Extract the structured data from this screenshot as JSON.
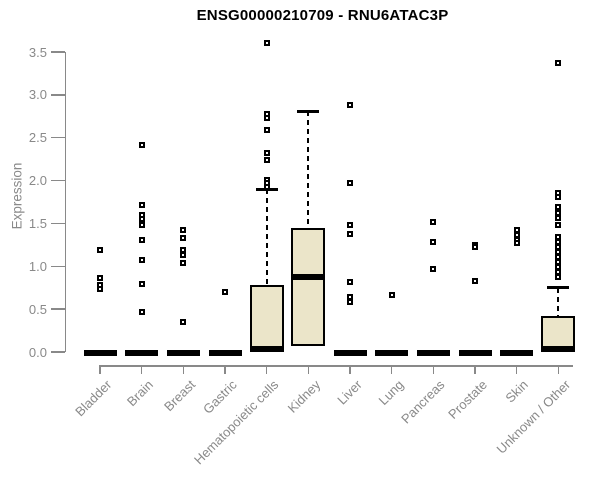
{
  "chart_data": {
    "type": "boxplot",
    "title": "ENSG00000210709 - RNU6ATAC3P",
    "ylabel": "Expression",
    "ylim": [
      0,
      3.5
    ],
    "ytick_values": [
      0,
      0.5,
      1,
      1.5,
      2,
      2.5,
      3,
      3.5
    ],
    "ytick_labels": [
      "0.0",
      "0.5",
      "1.0",
      "1.5",
      "2.0",
      "2.5",
      "3.0",
      "3.5"
    ],
    "grid": "off",
    "legend": "none",
    "box_fill_color": "#ebe5c9",
    "box_line_color": "#000000",
    "axis_color": "#898989",
    "title_color": "#000000",
    "categories": [
      "Bladder",
      "Brain",
      "Breast",
      "Gastric",
      "Hematopoietic cells",
      "Kidney",
      "Liver",
      "Lung",
      "Pancreas",
      "Prostate",
      "Skin",
      "Unknown / Other"
    ],
    "boxes": [
      {
        "label": "Bladder",
        "q1": 0,
        "median": 0,
        "q3": 0,
        "whisker_low": 0,
        "whisker_high": 0,
        "outliers": [
          1.19,
          0.86,
          0.78,
          0.74
        ]
      },
      {
        "label": "Brain",
        "q1": 0,
        "median": 0,
        "q3": 0,
        "whisker_low": 0,
        "whisker_high": 0,
        "outliers": [
          2.41,
          1.72,
          1.6,
          1.55,
          1.48,
          1.31,
          1.07,
          0.79,
          0.47
        ]
      },
      {
        "label": "Breast",
        "q1": 0,
        "median": 0,
        "q3": 0,
        "whisker_low": 0,
        "whisker_high": 0,
        "outliers": [
          1.42,
          1.33,
          1.19,
          1.13,
          1.04,
          0.35
        ]
      },
      {
        "label": "Gastric",
        "q1": 0,
        "median": 0,
        "q3": 0,
        "whisker_low": 0,
        "whisker_high": 0,
        "outliers": [
          0.7
        ]
      },
      {
        "label": "Hematopoietic cells",
        "q1": 0,
        "median": 0.03,
        "q3": 0.78,
        "whisker_low": 0,
        "whisker_high": 1.9,
        "outliers": [
          3.6,
          2.78,
          2.73,
          2.59,
          2.32,
          2.24,
          2.01,
          1.97,
          1.93
        ]
      },
      {
        "label": "Kidney",
        "q1": 0.07,
        "median": 0.88,
        "q3": 1.45,
        "whisker_low": 0.07,
        "whisker_high": 2.81,
        "outliers": []
      },
      {
        "label": "Liver",
        "q1": 0,
        "median": 0,
        "q3": 0,
        "whisker_low": 0,
        "whisker_high": 0,
        "outliers": [
          2.88,
          1.97,
          1.48,
          1.38,
          0.82,
          0.64,
          0.58
        ]
      },
      {
        "label": "Lung",
        "q1": 0,
        "median": 0,
        "q3": 0,
        "whisker_low": 0,
        "whisker_high": 0,
        "outliers": [
          0.67
        ]
      },
      {
        "label": "Pancreas",
        "q1": 0,
        "median": 0,
        "q3": 0,
        "whisker_low": 0,
        "whisker_high": 0,
        "outliers": [
          1.52,
          1.28,
          0.97
        ]
      },
      {
        "label": "Prostate",
        "q1": 0,
        "median": 0,
        "q3": 0,
        "whisker_low": 0,
        "whisker_high": 0,
        "outliers": [
          1.25,
          1.22,
          0.83
        ]
      },
      {
        "label": "Skin",
        "q1": 0,
        "median": 0,
        "q3": 0,
        "whisker_low": 0,
        "whisker_high": 0,
        "outliers": [
          1.42,
          1.37,
          1.31,
          1.27
        ]
      },
      {
        "label": "Unknown / Other",
        "q1": 0,
        "median": 0.03,
        "q3": 0.42,
        "whisker_low": 0,
        "whisker_high": 0.75,
        "outliers": [
          3.37,
          1.85,
          1.81,
          1.69,
          1.62,
          1.56,
          1.48,
          1.34,
          1.28,
          1.23,
          1.17,
          1.11,
          1.05,
          0.99,
          0.93,
          0.88
        ]
      }
    ]
  }
}
